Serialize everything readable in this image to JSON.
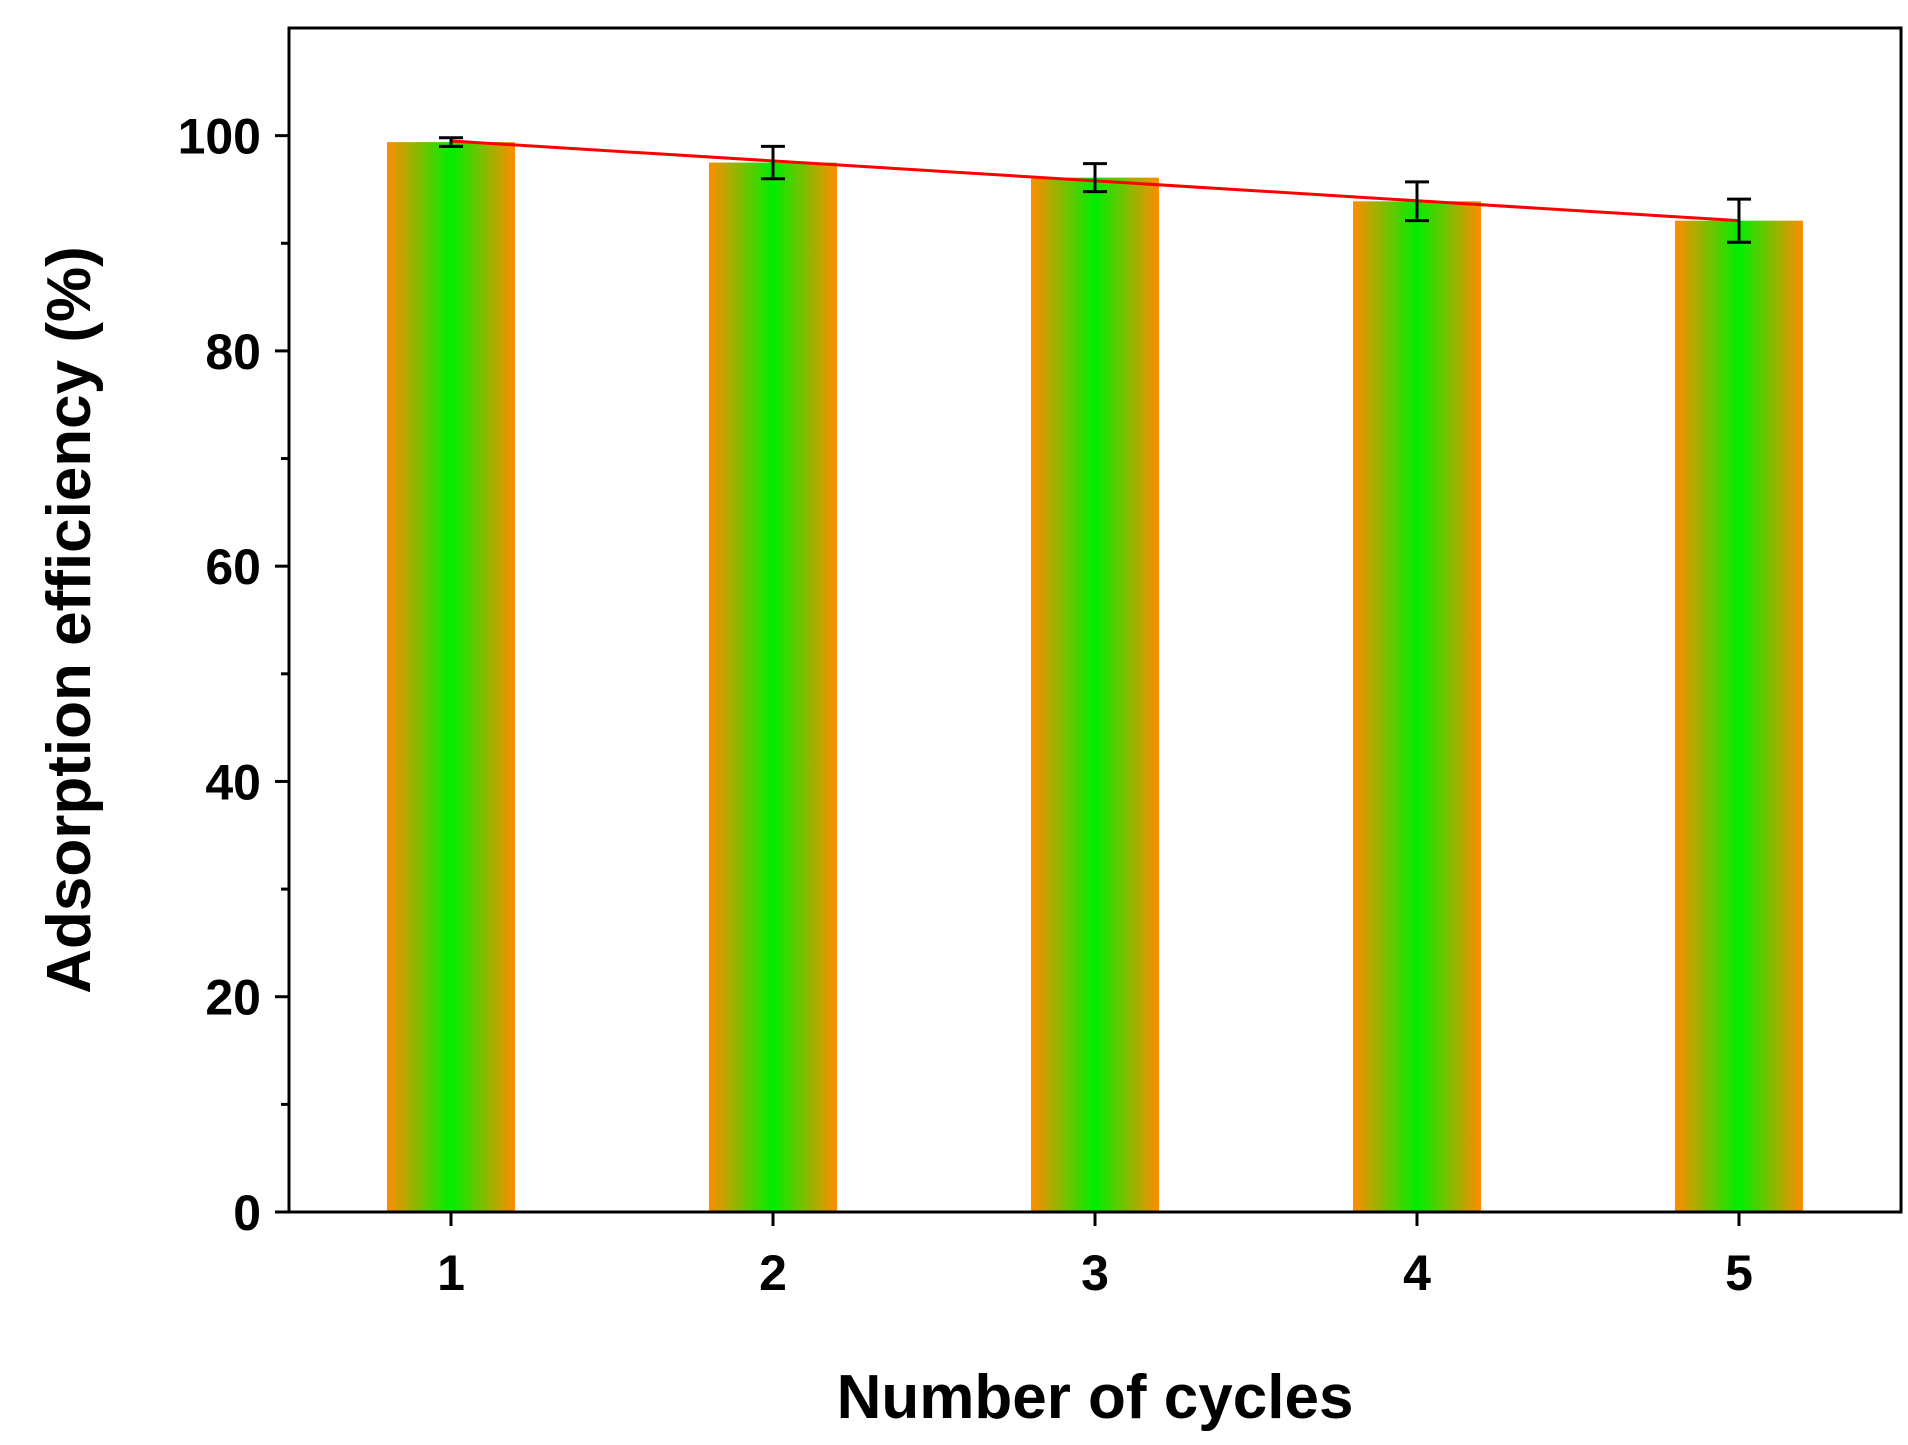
{
  "chart_data": {
    "type": "bar",
    "title": "",
    "xlabel": "Number of cycles",
    "ylabel": "Adsorption efficiency (%)",
    "categories": [
      "1",
      "2",
      "3",
      "4",
      "5"
    ],
    "values": [
      99.4,
      97.5,
      96.1,
      93.9,
      92.1
    ],
    "error": [
      0.4,
      1.5,
      1.3,
      1.8,
      2.0
    ],
    "ylim": [
      0,
      110
    ],
    "yticks": [
      0,
      20,
      40,
      60,
      80,
      100
    ],
    "yticks_minor": [
      10,
      30,
      50,
      70,
      90
    ],
    "trendline": {
      "type": "linear",
      "start": [
        1,
        99.5
      ],
      "end": [
        5,
        92.1
      ],
      "color": "#ff0000"
    },
    "bar_gradient": {
      "edge_color": "#ff8c00",
      "center_color": "#00ee00"
    },
    "grid": false,
    "legend": "none"
  }
}
